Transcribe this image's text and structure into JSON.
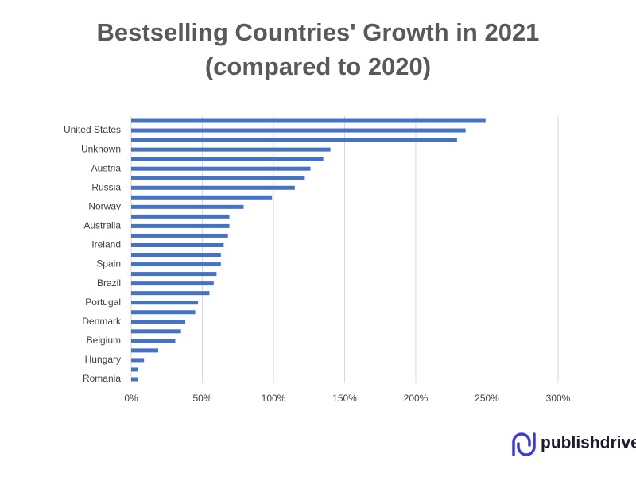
{
  "chart_data": {
    "type": "hbar",
    "title": "Bestselling Countries' Growth in 2021",
    "subtitle": "(compared to 2020)",
    "categories": [
      null,
      "United States",
      null,
      "Unknown",
      null,
      "Austria",
      null,
      "Russia",
      null,
      "Norway",
      null,
      "Australia",
      null,
      "Ireland",
      null,
      "Spain",
      null,
      "Brazil",
      null,
      "Portugal",
      null,
      "Denmark",
      null,
      "Belgium",
      null,
      "Hungary",
      null,
      "Romania"
    ],
    "values": [
      249,
      235,
      229,
      140,
      135,
      126,
      122,
      115,
      99,
      79,
      69,
      69,
      68,
      65,
      63,
      63,
      60,
      58,
      55,
      47,
      45,
      38,
      35,
      31,
      19,
      9,
      5,
      5
    ],
    "color": "#4472c4",
    "xlim": [
      0,
      300
    ],
    "xticks": [
      {
        "value": 0,
        "label": "0%"
      },
      {
        "value": 50,
        "label": "50%"
      },
      {
        "value": 100,
        "label": "100%"
      },
      {
        "value": 150,
        "label": "150%"
      },
      {
        "value": 200,
        "label": "200%"
      },
      {
        "value": 250,
        "label": "250%"
      },
      {
        "value": 300,
        "label": "300%"
      }
    ],
    "grid": true
  },
  "brand": "publishdrive"
}
